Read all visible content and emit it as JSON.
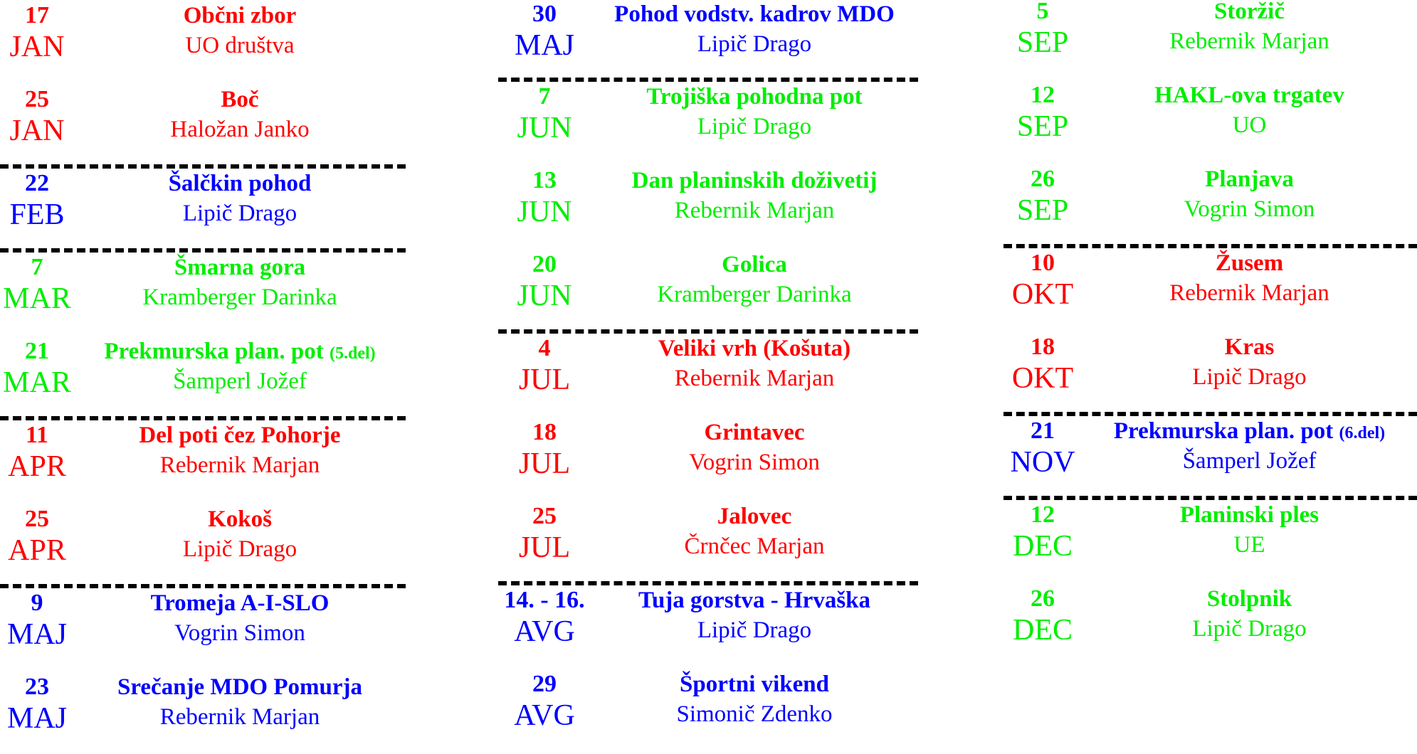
{
  "colors": {
    "red": "#ff0000",
    "blue": "#0000ff",
    "green": "#00ee00",
    "separator": "#000000"
  },
  "columns": [
    [
      {
        "day": "17",
        "month": "JAN",
        "title": "Občni zbor",
        "note": "",
        "leader": "UO društva",
        "color": "red",
        "separator_after": false
      },
      {
        "day": "25",
        "month": "JAN",
        "title": "Boč",
        "note": "",
        "leader": "Haložan Janko",
        "color": "red",
        "separator_after": true
      },
      {
        "day": "22",
        "month": "FEB",
        "title": "Šalčkin pohod",
        "note": "",
        "leader": "Lipič Drago",
        "color": "blue",
        "separator_after": true
      },
      {
        "day": "7",
        "month": "MAR",
        "title": "Šmarna gora",
        "note": "",
        "leader": "Kramberger Darinka",
        "color": "green",
        "separator_after": false
      },
      {
        "day": "21",
        "month": "MAR",
        "title": "Prekmurska plan. pot",
        "note": "(5.del)",
        "leader": "Šamperl Jožef",
        "color": "green",
        "separator_after": true
      },
      {
        "day": "11",
        "month": "APR",
        "title": "Del poti čez Pohorje",
        "note": "",
        "leader": "Rebernik Marjan",
        "color": "red",
        "separator_after": false
      },
      {
        "day": "25",
        "month": "APR",
        "title": "Kokoš",
        "note": "",
        "leader": "Lipič Drago",
        "color": "red",
        "separator_after": true
      },
      {
        "day": "9",
        "month": "MAJ",
        "title": "Tromeja A-I-SLO",
        "note": "",
        "leader": "Vogrin Simon",
        "color": "blue",
        "separator_after": false
      },
      {
        "day": "23",
        "month": "MAJ",
        "title": "Srečanje MDO Pomurja",
        "note": "",
        "leader": "Rebernik Marjan",
        "color": "blue",
        "separator_after": false
      }
    ],
    [
      {
        "day": "30",
        "month": "MAJ",
        "title": "Pohod vodstv. kadrov MDO",
        "note": "",
        "leader": "Lipič Drago",
        "color": "blue",
        "separator_after": true
      },
      {
        "day": "7",
        "month": "JUN",
        "title": "Trojiška pohodna pot",
        "note": "",
        "leader": "Lipič Drago",
        "color": "green",
        "separator_after": false
      },
      {
        "day": "13",
        "month": "JUN",
        "title": "Dan planinskih doživetij",
        "note": "",
        "leader": "Rebernik Marjan",
        "color": "green",
        "separator_after": false
      },
      {
        "day": "20",
        "month": "JUN",
        "title": "Golica",
        "note": "",
        "leader": "Kramberger Darinka",
        "color": "green",
        "separator_after": true
      },
      {
        "day": "4",
        "month": "JUL",
        "title": "Veliki vrh (Košuta)",
        "note": "",
        "leader": "Rebernik Marjan",
        "color": "red",
        "separator_after": false
      },
      {
        "day": "18",
        "month": "JUL",
        "title": "Grintavec",
        "note": "",
        "leader": "Vogrin Simon",
        "color": "red",
        "separator_after": false
      },
      {
        "day": "25",
        "month": "JUL",
        "title": "Jalovec",
        "note": "",
        "leader": "Črnčec Marjan",
        "color": "red",
        "separator_after": true
      },
      {
        "day": "14. - 16.",
        "month": "AVG",
        "title": "Tuja gorstva - Hrvaška",
        "note": "",
        "leader": "Lipič Drago",
        "color": "blue",
        "separator_after": false
      },
      {
        "day": "29",
        "month": "AVG",
        "title": "Športni vikend",
        "note": "",
        "leader": "Simonič Zdenko",
        "color": "blue",
        "separator_after": false
      }
    ],
    [
      {
        "day": "5",
        "month": "SEP",
        "title": "Storžič",
        "note": "",
        "leader": "Rebernik Marjan",
        "color": "green",
        "separator_after": false
      },
      {
        "day": "12",
        "month": "SEP",
        "title": "HAKL-ova trgatev",
        "note": "",
        "leader": "UO",
        "color": "green",
        "separator_after": false
      },
      {
        "day": "26",
        "month": "SEP",
        "title": "Planjava",
        "note": "",
        "leader": "Vogrin Simon",
        "color": "green",
        "separator_after": true
      },
      {
        "day": "10",
        "month": "OKT",
        "title": "Žusem",
        "note": "",
        "leader": "Rebernik Marjan",
        "color": "red",
        "separator_after": false
      },
      {
        "day": "18",
        "month": "OKT",
        "title": "Kras",
        "note": "",
        "leader": "Lipič Drago",
        "color": "red",
        "separator_after": true
      },
      {
        "day": "21",
        "month": "NOV",
        "title": "Prekmurska plan. pot",
        "note": "(6.del)",
        "leader": "Šamperl Jožef",
        "color": "blue",
        "separator_after": true
      },
      {
        "day": "12",
        "month": "DEC",
        "title": "Planinski ples",
        "note": "",
        "leader": "UE",
        "color": "green",
        "separator_after": false
      },
      {
        "day": "26",
        "month": "DEC",
        "title": "Stolpnik",
        "note": "",
        "leader": "Lipič Drago",
        "color": "green",
        "separator_after": false
      }
    ]
  ]
}
